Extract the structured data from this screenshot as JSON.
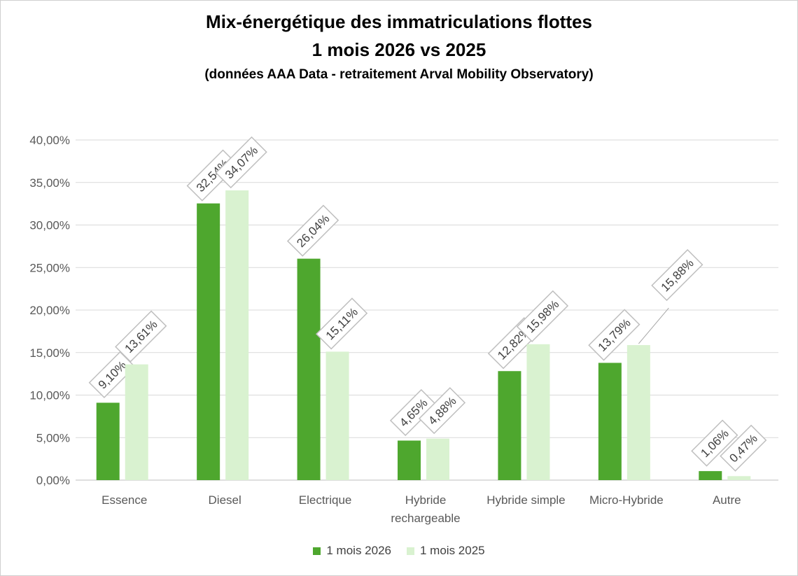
{
  "chart_data": {
    "type": "bar",
    "title": "Mix-énergétique des immatriculations flottes",
    "subtitle": "1 mois 2026 vs 2025",
    "note": "(données AAA Data - retraitement Arval Mobility Observatory)",
    "categories": [
      "Essence",
      "Diesel",
      "Electrique",
      "Hybride rechargeable",
      "Hybride simple",
      "Micro-Hybride",
      "Autre"
    ],
    "series": [
      {
        "name": "1 mois 2026",
        "color": "#4EA72E",
        "values": [
          9.1,
          32.54,
          26.04,
          4.65,
          12.82,
          13.79,
          1.06
        ],
        "labels": [
          "9,10%",
          "32,54%",
          "26,04%",
          "4,65%",
          "12,82%",
          "13,79%",
          "1,06%"
        ]
      },
      {
        "name": "1 mois 2025",
        "color": "#D9F2D0",
        "values": [
          13.61,
          34.07,
          15.11,
          4.88,
          15.98,
          15.88,
          0.47
        ],
        "labels": [
          "13,61%",
          "34,07%",
          "15,11%",
          "4,88%",
          "15,98%",
          "15,88%",
          "0,47%"
        ]
      }
    ],
    "ylim": [
      0,
      40
    ],
    "yticks": [
      "0,00%",
      "5,00%",
      "10,00%",
      "15,00%",
      "20,00%",
      "25,00%",
      "30,00%",
      "35,00%",
      "40,00%"
    ],
    "grid": true,
    "legend_position": "bottom"
  }
}
